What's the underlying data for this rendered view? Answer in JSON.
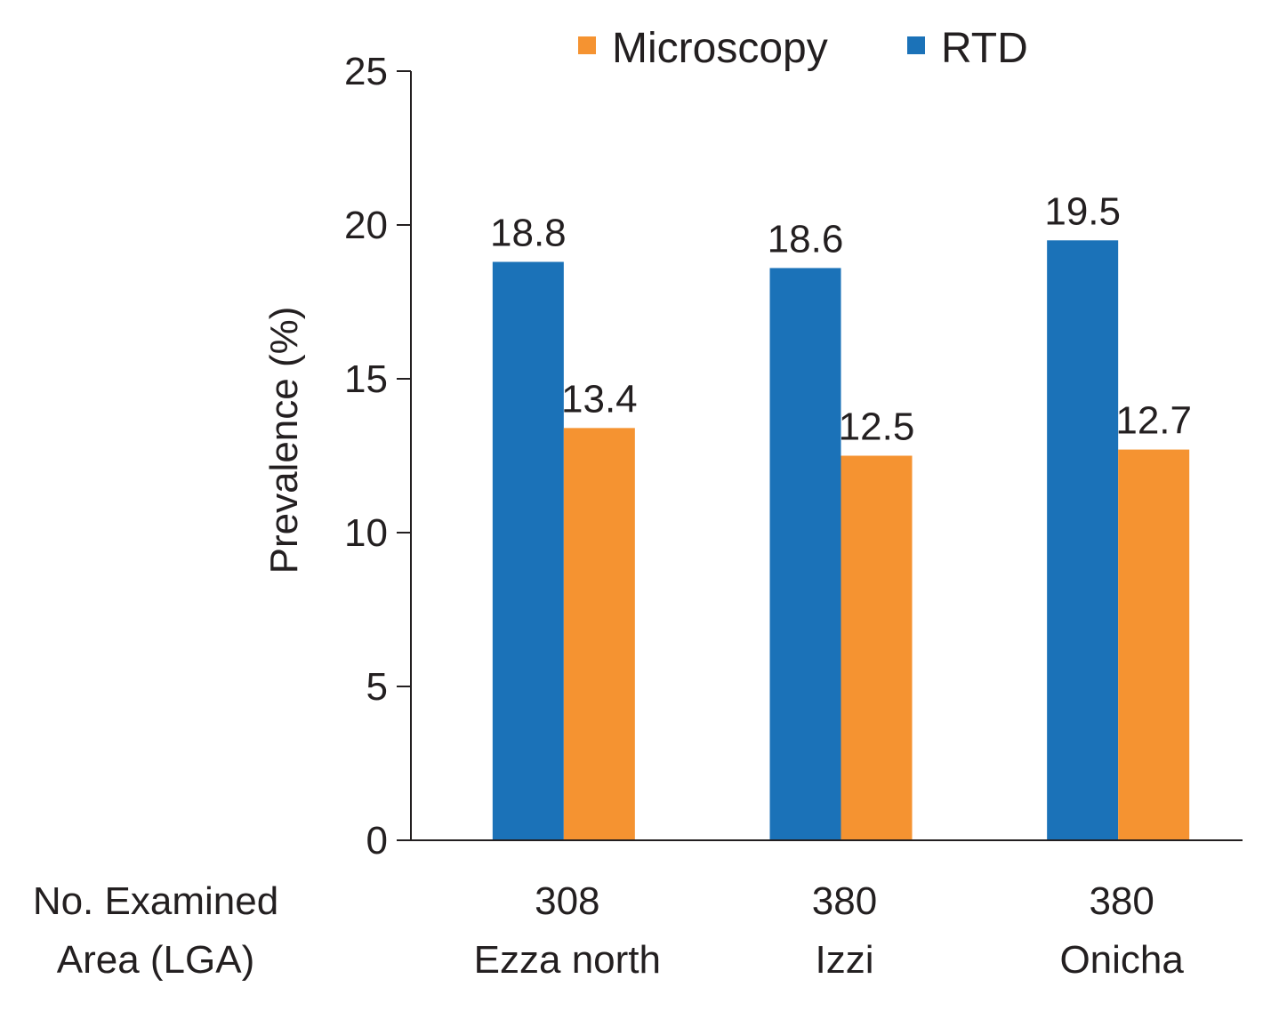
{
  "chart_data": {
    "type": "bar",
    "categories": [
      "Ezza north",
      "Izzi",
      "Onicha"
    ],
    "examined": [
      "308",
      "380",
      "380"
    ],
    "series": [
      {
        "name": "RTD",
        "values": [
          18.8,
          18.6,
          19.5
        ],
        "labels": [
          "18.8",
          "18.6",
          "19.5"
        ],
        "color": "#1b72b8"
      },
      {
        "name": "Microscopy",
        "values": [
          13.4,
          12.5,
          12.7
        ],
        "labels": [
          "13.4",
          "12.5",
          "12.7"
        ],
        "color": "#f59331"
      }
    ],
    "ylabel": "Prevalence (%)",
    "ylim": [
      0,
      25
    ],
    "yticks": [
      0,
      5,
      10,
      15,
      20,
      25
    ],
    "row_labels": [
      "No. Examined",
      "Area (LGA)"
    ],
    "legend": [
      {
        "name": "Microscopy",
        "color": "#f59331"
      },
      {
        "name": "RTD",
        "color": "#1b72b8"
      }
    ],
    "legend_position": "top-right",
    "grid": false
  }
}
